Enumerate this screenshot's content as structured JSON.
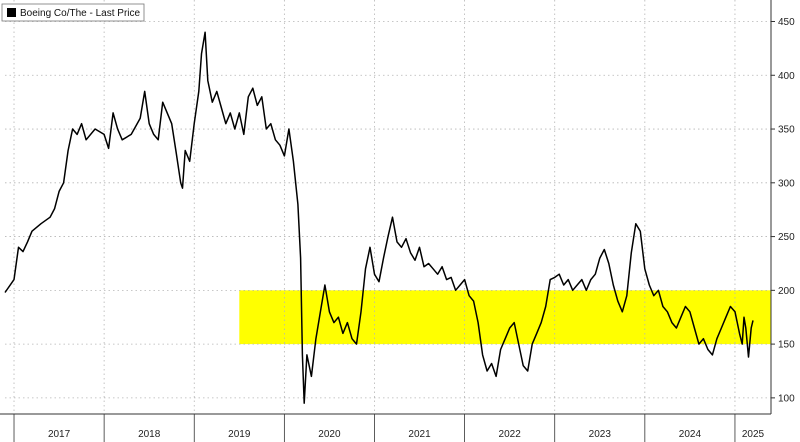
{
  "chart_data": {
    "type": "line",
    "legend": {
      "label": "Boeing Co/The - Last Price",
      "placement": "top-left",
      "swatch_color": "#000000"
    },
    "series": [
      {
        "name": "Boeing Co/The - Last Price",
        "color": "#000000",
        "points": [
          [
            2016.9,
            198
          ],
          [
            2017.0,
            210
          ],
          [
            2017.05,
            240
          ],
          [
            2017.1,
            236
          ],
          [
            2017.15,
            245
          ],
          [
            2017.2,
            255
          ],
          [
            2017.3,
            262
          ],
          [
            2017.4,
            268
          ],
          [
            2017.45,
            276
          ],
          [
            2017.5,
            292
          ],
          [
            2017.55,
            300
          ],
          [
            2017.6,
            330
          ],
          [
            2017.65,
            350
          ],
          [
            2017.7,
            345
          ],
          [
            2017.75,
            355
          ],
          [
            2017.8,
            340
          ],
          [
            2017.9,
            350
          ],
          [
            2018.0,
            345
          ],
          [
            2018.05,
            332
          ],
          [
            2018.1,
            365
          ],
          [
            2018.15,
            350
          ],
          [
            2018.2,
            340
          ],
          [
            2018.3,
            345
          ],
          [
            2018.4,
            360
          ],
          [
            2018.45,
            385
          ],
          [
            2018.5,
            355
          ],
          [
            2018.55,
            345
          ],
          [
            2018.6,
            340
          ],
          [
            2018.65,
            375
          ],
          [
            2018.7,
            365
          ],
          [
            2018.75,
            355
          ],
          [
            2018.8,
            328
          ],
          [
            2018.85,
            300
          ],
          [
            2018.87,
            295
          ],
          [
            2018.9,
            330
          ],
          [
            2018.95,
            320
          ],
          [
            2019.0,
            355
          ],
          [
            2019.05,
            385
          ],
          [
            2019.08,
            420
          ],
          [
            2019.12,
            440
          ],
          [
            2019.15,
            395
          ],
          [
            2019.2,
            375
          ],
          [
            2019.25,
            385
          ],
          [
            2019.3,
            370
          ],
          [
            2019.35,
            355
          ],
          [
            2019.4,
            365
          ],
          [
            2019.45,
            350
          ],
          [
            2019.5,
            365
          ],
          [
            2019.55,
            345
          ],
          [
            2019.6,
            380
          ],
          [
            2019.65,
            388
          ],
          [
            2019.7,
            372
          ],
          [
            2019.75,
            380
          ],
          [
            2019.8,
            350
          ],
          [
            2019.85,
            355
          ],
          [
            2019.9,
            340
          ],
          [
            2019.95,
            335
          ],
          [
            2020.0,
            325
          ],
          [
            2020.05,
            350
          ],
          [
            2020.1,
            320
          ],
          [
            2020.15,
            280
          ],
          [
            2020.18,
            230
          ],
          [
            2020.2,
            140
          ],
          [
            2020.22,
            95
          ],
          [
            2020.25,
            140
          ],
          [
            2020.3,
            120
          ],
          [
            2020.35,
            155
          ],
          [
            2020.4,
            180
          ],
          [
            2020.45,
            205
          ],
          [
            2020.5,
            180
          ],
          [
            2020.55,
            170
          ],
          [
            2020.6,
            175
          ],
          [
            2020.65,
            160
          ],
          [
            2020.7,
            170
          ],
          [
            2020.75,
            155
          ],
          [
            2020.8,
            150
          ],
          [
            2020.85,
            180
          ],
          [
            2020.9,
            220
          ],
          [
            2020.95,
            240
          ],
          [
            2021.0,
            215
          ],
          [
            2021.05,
            208
          ],
          [
            2021.1,
            230
          ],
          [
            2021.15,
            250
          ],
          [
            2021.2,
            268
          ],
          [
            2021.25,
            245
          ],
          [
            2021.3,
            240
          ],
          [
            2021.35,
            248
          ],
          [
            2021.4,
            235
          ],
          [
            2021.45,
            228
          ],
          [
            2021.5,
            240
          ],
          [
            2021.55,
            222
          ],
          [
            2021.6,
            225
          ],
          [
            2021.65,
            220
          ],
          [
            2021.7,
            215
          ],
          [
            2021.75,
            222
          ],
          [
            2021.8,
            210
          ],
          [
            2021.85,
            212
          ],
          [
            2021.9,
            200
          ],
          [
            2021.95,
            205
          ],
          [
            2022.0,
            210
          ],
          [
            2022.05,
            195
          ],
          [
            2022.1,
            190
          ],
          [
            2022.15,
            170
          ],
          [
            2022.2,
            140
          ],
          [
            2022.25,
            125
          ],
          [
            2022.3,
            132
          ],
          [
            2022.35,
            120
          ],
          [
            2022.4,
            145
          ],
          [
            2022.45,
            155
          ],
          [
            2022.5,
            165
          ],
          [
            2022.55,
            170
          ],
          [
            2022.6,
            150
          ],
          [
            2022.65,
            130
          ],
          [
            2022.7,
            125
          ],
          [
            2022.75,
            150
          ],
          [
            2022.8,
            160
          ],
          [
            2022.85,
            170
          ],
          [
            2022.9,
            185
          ],
          [
            2022.95,
            210
          ],
          [
            2023.0,
            212
          ],
          [
            2023.05,
            215
          ],
          [
            2023.1,
            205
          ],
          [
            2023.15,
            210
          ],
          [
            2023.2,
            200
          ],
          [
            2023.25,
            205
          ],
          [
            2023.3,
            210
          ],
          [
            2023.35,
            200
          ],
          [
            2023.4,
            210
          ],
          [
            2023.45,
            215
          ],
          [
            2023.5,
            230
          ],
          [
            2023.55,
            238
          ],
          [
            2023.6,
            225
          ],
          [
            2023.65,
            205
          ],
          [
            2023.7,
            190
          ],
          [
            2023.75,
            180
          ],
          [
            2023.8,
            195
          ],
          [
            2023.85,
            235
          ],
          [
            2023.9,
            262
          ],
          [
            2023.95,
            255
          ],
          [
            2024.0,
            220
          ],
          [
            2024.05,
            205
          ],
          [
            2024.1,
            195
          ],
          [
            2024.15,
            200
          ],
          [
            2024.2,
            185
          ],
          [
            2024.25,
            180
          ],
          [
            2024.3,
            170
          ],
          [
            2024.35,
            165
          ],
          [
            2024.4,
            175
          ],
          [
            2024.45,
            185
          ],
          [
            2024.5,
            180
          ],
          [
            2024.55,
            165
          ],
          [
            2024.6,
            150
          ],
          [
            2024.65,
            155
          ],
          [
            2024.7,
            145
          ],
          [
            2024.75,
            140
          ],
          [
            2024.8,
            155
          ],
          [
            2024.85,
            165
          ],
          [
            2024.9,
            175
          ],
          [
            2024.95,
            185
          ],
          [
            2025.0,
            180
          ],
          [
            2025.05,
            160
          ],
          [
            2025.08,
            150
          ],
          [
            2025.1,
            175
          ],
          [
            2025.12,
            165
          ],
          [
            2025.15,
            138
          ],
          [
            2025.18,
            165
          ],
          [
            2025.2,
            172
          ]
        ]
      }
    ],
    "highlight_band": {
      "y_min": 150,
      "y_max": 200,
      "x_start": 2019.5,
      "x_end": 2025.4,
      "color": "#ffff00"
    },
    "x_ticks": [
      "2017",
      "2018",
      "2019",
      "2020",
      "2021",
      "2022",
      "2023",
      "2024",
      "2025"
    ],
    "x_tick_positions": [
      2017.0,
      2018.0,
      2019.0,
      2020.0,
      2021.0,
      2022.0,
      2023.0,
      2024.0,
      2025.0
    ],
    "x_boundaries": [
      2017.0,
      2018.0,
      2019.0,
      2020.0,
      2021.0,
      2022.0,
      2023.0,
      2024.0,
      2025.0
    ],
    "xlim": [
      2016.9,
      2025.4
    ],
    "y_ticks": [
      100,
      150,
      200,
      250,
      300,
      350,
      400,
      450
    ],
    "ylim": [
      85,
      470
    ],
    "y_axis_side": "right",
    "grid": true,
    "title": "",
    "xlabel": "",
    "ylabel": ""
  }
}
